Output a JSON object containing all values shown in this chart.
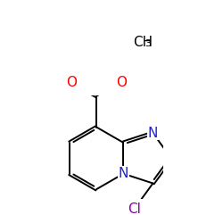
{
  "background_color": "#ffffff",
  "bond_color": "#000000",
  "atom_colors": {
    "O": "#ff0000",
    "N": "#2222cc",
    "Cl": "#8800aa",
    "C": "#000000"
  },
  "lw": 1.4,
  "fig_width": 2.5,
  "fig_height": 2.5,
  "dpi": 100,
  "u": 0.3
}
